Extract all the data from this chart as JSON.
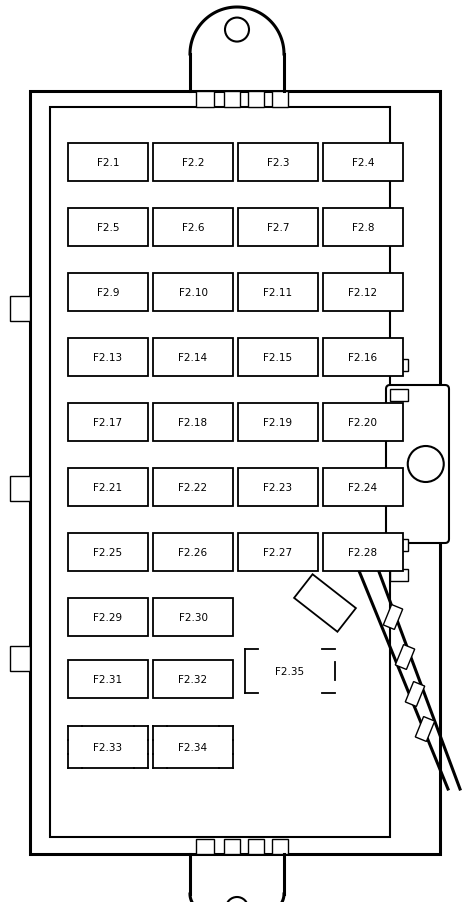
{
  "fig_width": 4.74,
  "fig_height": 9.03,
  "bg_color": "#ffffff",
  "line_color": "#000000",
  "fuse_rows": [
    [
      "F2.1",
      "F2.2",
      "F2.3",
      "F2.4"
    ],
    [
      "F2.5",
      "F2.6",
      "F2.7",
      "F2.8"
    ],
    [
      "F2.9",
      "F2.10",
      "F2.11",
      "F2.12"
    ],
    [
      "F2.13",
      "F2.14",
      "F2.15",
      "F2.16"
    ],
    [
      "F2.17",
      "F2.18",
      "F2.19",
      "F2.20"
    ],
    [
      "F2.21",
      "F2.22",
      "F2.23",
      "F2.24"
    ],
    [
      "F2.25",
      "F2.26",
      "F2.27",
      "F2.28"
    ]
  ],
  "small_fuse_rows": [
    [
      "F2.29",
      "F2.30"
    ],
    [
      "F2.31",
      "F2.32"
    ]
  ],
  "relay_labels": [
    "F2.33",
    "F2.34"
  ],
  "special_label": "F2.35",
  "font_size": 7.5,
  "lw_outer": 2.2,
  "lw_inner": 1.5,
  "lw_fuse": 1.3,
  "lw_thin": 1.0
}
